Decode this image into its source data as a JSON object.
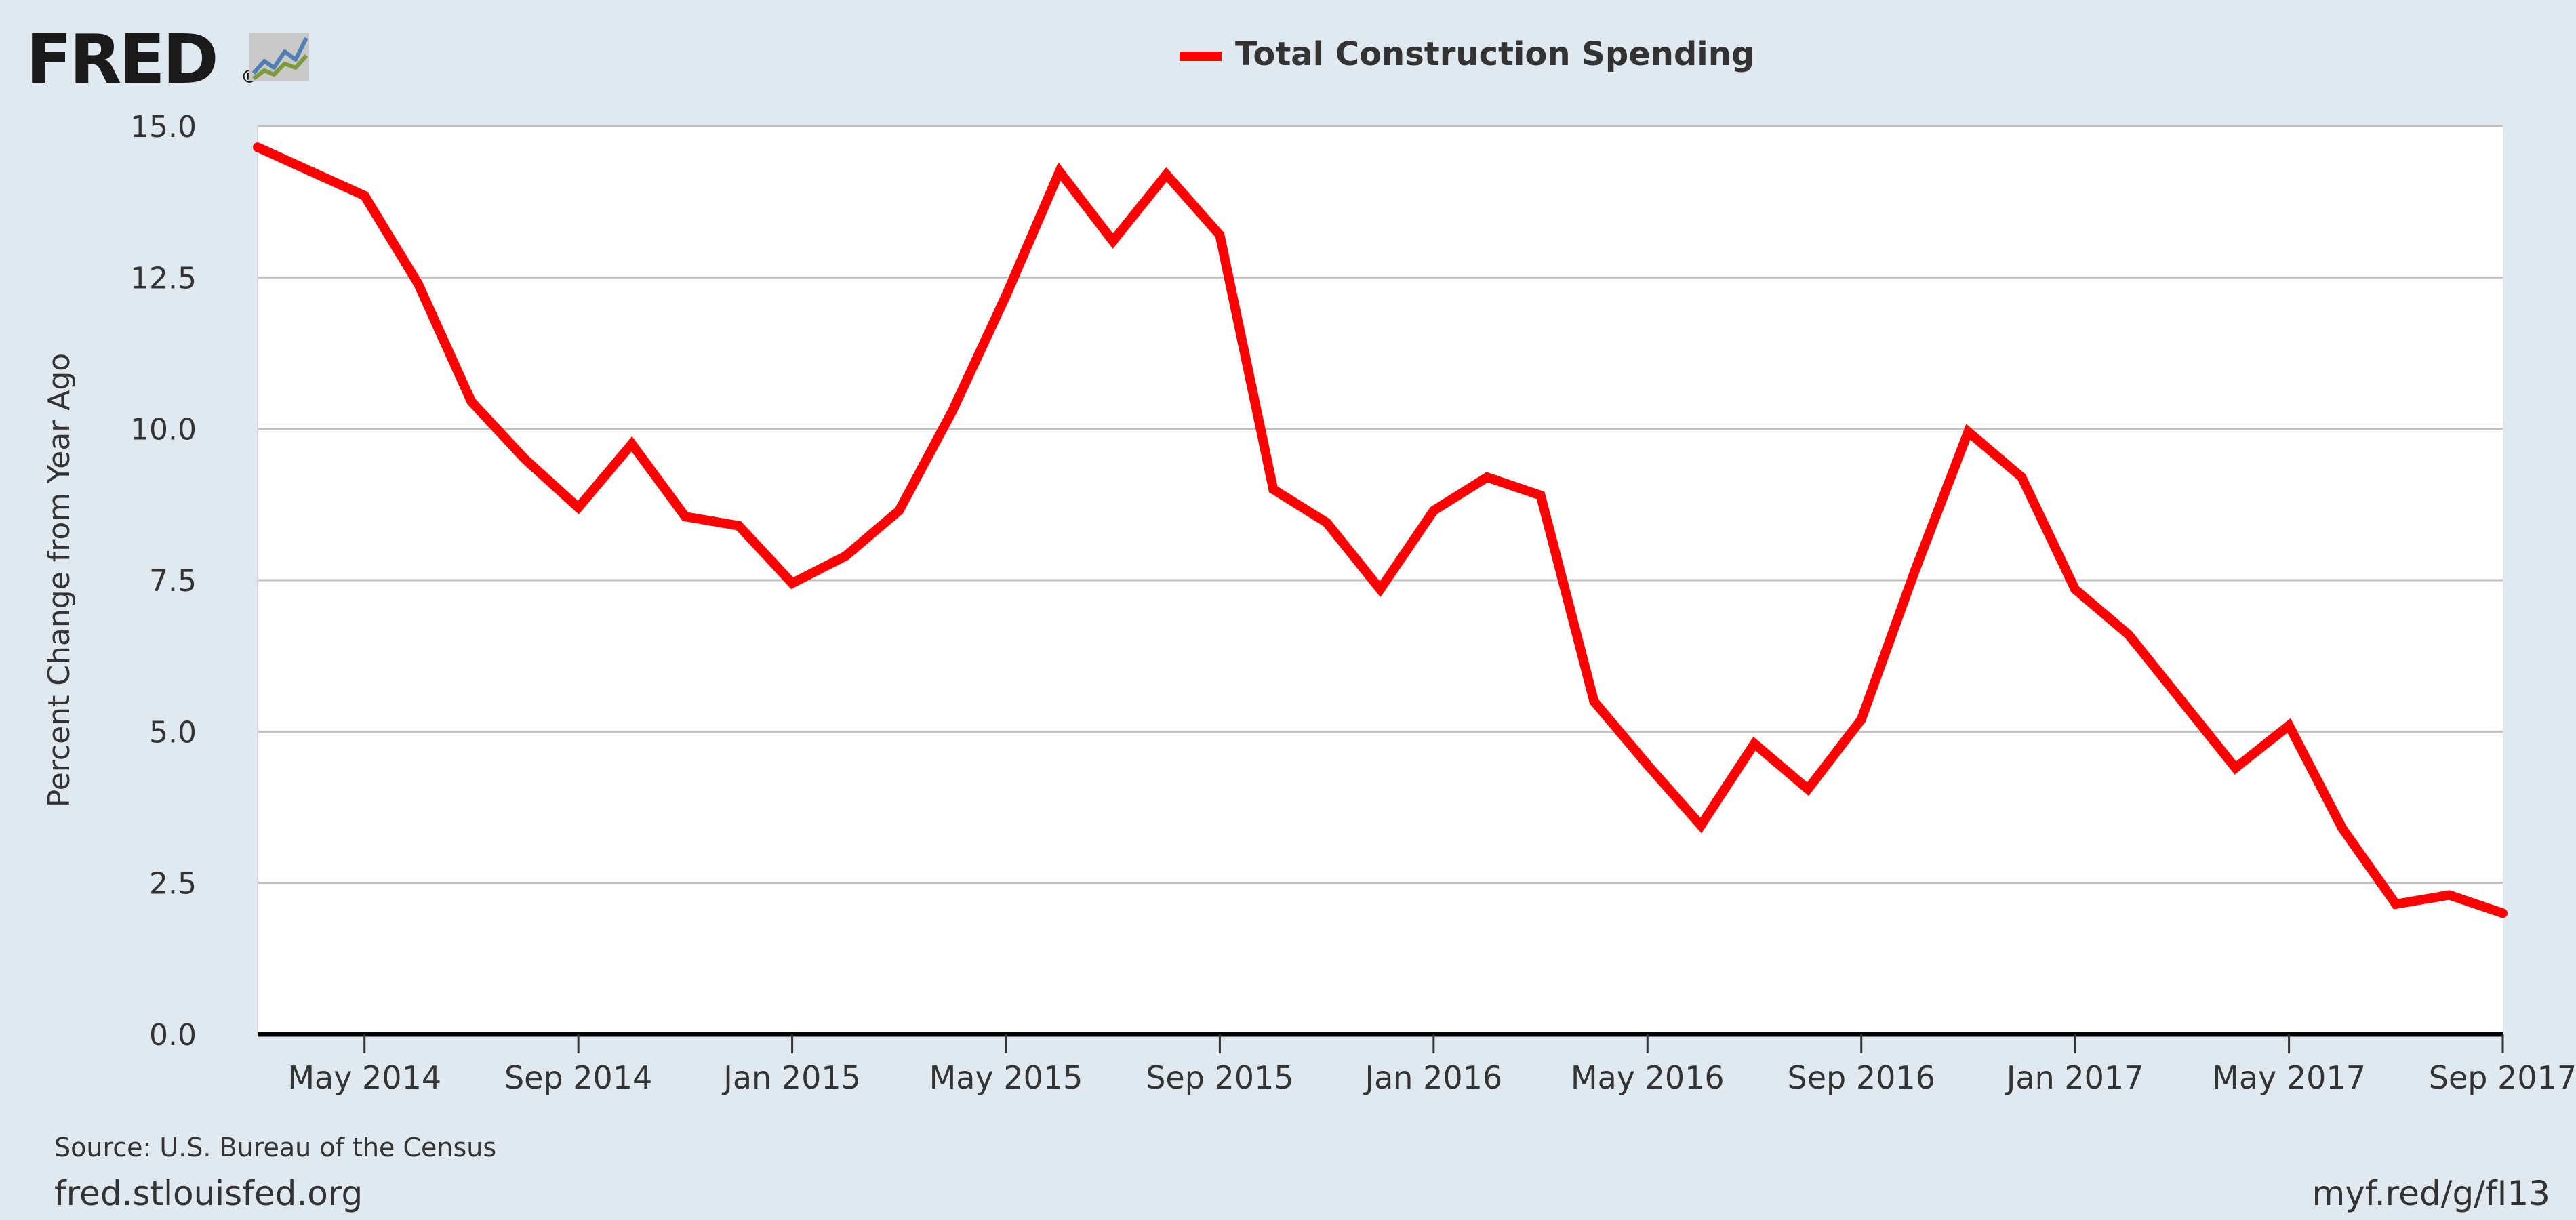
{
  "header": {
    "logo_text": "FRED",
    "logo_registered": "®"
  },
  "footer": {
    "source": "Source: U.S. Bureau of the Census",
    "site": "fred.stlouisfed.org",
    "short_link": "myf.red/g/fI13"
  },
  "colors": {
    "page_background": "#e1e9f0",
    "plot_background": "#ffffff",
    "series_line": "#ff0000",
    "gridline": "#c0c0c0",
    "baseline": "#000000"
  },
  "chart_data": {
    "type": "line",
    "title": "",
    "xlabel": "",
    "ylabel": "Percent Change from Year Ago",
    "ylim": [
      0,
      15
    ],
    "xlim": [
      "2014-03",
      "2017-09"
    ],
    "y_ticks": [
      "0.0",
      "2.5",
      "5.0",
      "7.5",
      "10.0",
      "12.5",
      "15.0"
    ],
    "x_ticks": [
      {
        "date": "2014-05",
        "label": "May 2014"
      },
      {
        "date": "2014-09",
        "label": "Sep 2014"
      },
      {
        "date": "2015-01",
        "label": "Jan 2015"
      },
      {
        "date": "2015-05",
        "label": "May 2015"
      },
      {
        "date": "2015-09",
        "label": "Sep 2015"
      },
      {
        "date": "2016-01",
        "label": "Jan 2016"
      },
      {
        "date": "2016-05",
        "label": "May 2016"
      },
      {
        "date": "2016-09",
        "label": "Sep 2016"
      },
      {
        "date": "2017-01",
        "label": "Jan 2017"
      },
      {
        "date": "2017-05",
        "label": "May 2017"
      },
      {
        "date": "2017-09",
        "label": "Sep 2017"
      }
    ],
    "grid": true,
    "legend_position": "top-center",
    "x": [
      "2014-03",
      "2014-04",
      "2014-05",
      "2014-06",
      "2014-07",
      "2014-08",
      "2014-09",
      "2014-10",
      "2014-11",
      "2014-12",
      "2015-01",
      "2015-02",
      "2015-03",
      "2015-04",
      "2015-05",
      "2015-06",
      "2015-07",
      "2015-08",
      "2015-09",
      "2015-10",
      "2015-11",
      "2015-12",
      "2016-01",
      "2016-02",
      "2016-03",
      "2016-04",
      "2016-05",
      "2016-06",
      "2016-07",
      "2016-08",
      "2016-09",
      "2016-10",
      "2016-11",
      "2016-12",
      "2017-01",
      "2017-02",
      "2017-03",
      "2017-04",
      "2017-05",
      "2017-06",
      "2017-07",
      "2017-08",
      "2017-09"
    ],
    "series": [
      {
        "name": "Total Construction Spending",
        "color": "#ff0000",
        "values": [
          14.65,
          14.25,
          13.85,
          12.4,
          10.45,
          9.5,
          8.7,
          9.75,
          8.55,
          8.4,
          7.45,
          7.9,
          8.65,
          10.3,
          12.2,
          14.25,
          13.1,
          14.2,
          13.2,
          9.0,
          8.45,
          7.35,
          8.65,
          9.2,
          8.9,
          5.5,
          4.45,
          3.45,
          4.8,
          4.05,
          5.2,
          7.65,
          9.95,
          9.2,
          7.35,
          6.6,
          5.5,
          4.4,
          5.1,
          3.4,
          2.15,
          2.3,
          2.0
        ]
      }
    ]
  }
}
